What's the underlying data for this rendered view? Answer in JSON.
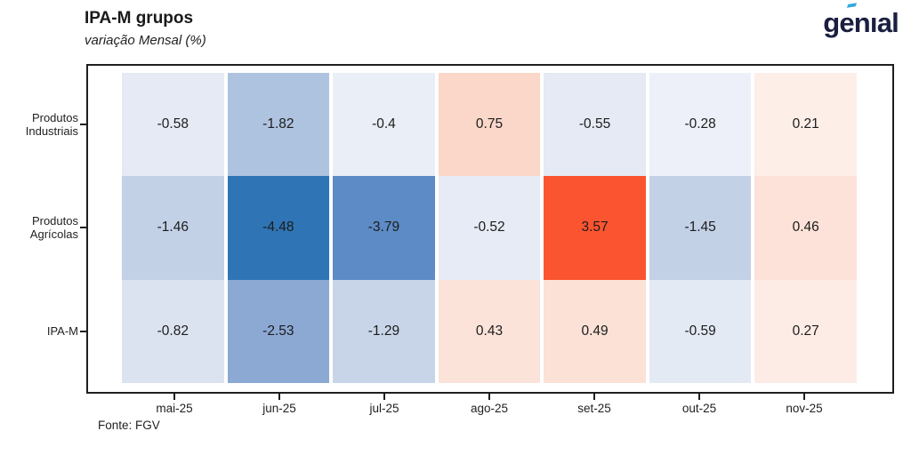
{
  "header": {
    "title": "IPA-M grupos",
    "subtitle": "variação Mensal (%)",
    "logo": {
      "part_g": "g",
      "part_e": "e",
      "part_rest": "nıal",
      "text_color": "#1b2040",
      "accent_color": "#2fa9dd"
    }
  },
  "footer": {
    "source": "Fonte: FGV"
  },
  "chart_data": {
    "type": "heatmap",
    "title": "IPA-M grupos",
    "subtitle": "variação Mensal (%)",
    "x_categories": [
      "mai-25",
      "jun-25",
      "jul-25",
      "ago-25",
      "set-25",
      "out-25",
      "nov-25"
    ],
    "y_categories": [
      [
        "Produtos",
        "Industriais"
      ],
      [
        "Produtos",
        "Agrícolas"
      ],
      [
        "IPA-M"
      ]
    ],
    "series": [
      {
        "name": "Produtos Industriais",
        "values": [
          -0.58,
          -1.82,
          -0.4,
          0.75,
          -0.55,
          -0.28,
          0.21
        ]
      },
      {
        "name": "Produtos Agrícolas",
        "values": [
          -1.46,
          -4.48,
          -3.79,
          -0.52,
          3.57,
          -1.45,
          0.46
        ]
      },
      {
        "name": "IPA-M",
        "values": [
          -0.82,
          -2.53,
          -1.29,
          0.43,
          0.49,
          -0.59,
          0.27
        ]
      }
    ],
    "cell_colors": [
      [
        "#e5eaf4",
        "#aec3e0",
        "#eaeef7",
        "#fbd7c9",
        "#e5eaf4",
        "#edf0f8",
        "#fdeee8"
      ],
      [
        "#c3d1e7",
        "#2f75b5",
        "#5c8bc5",
        "#e6ebf5",
        "#fb5430",
        "#c3d1e7",
        "#fce2d8"
      ],
      [
        "#dce3f0",
        "#8ca9d4",
        "#c8d5e9",
        "#fce3d9",
        "#fbe1d6",
        "#e4eaf4",
        "#fdece5"
      ]
    ],
    "colormap": "diverging blue (negative) to white to red/orange (positive)",
    "value_range_hint": [
      -4.48,
      3.57
    ],
    "value_text_color": "#1c1c1c",
    "grid": false,
    "legend": "none"
  }
}
